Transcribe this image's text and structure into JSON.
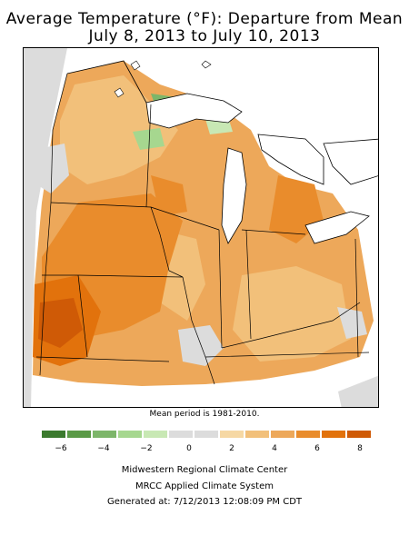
{
  "title_line1": "Average Temperature (°F): Departure from Mean",
  "title_line2": "July 8, 2013 to July 10, 2013",
  "mean_period": "Mean period is 1981-2010.",
  "legend": {
    "colors": [
      "#3b7a2e",
      "#5a9a46",
      "#7db66a",
      "#a6d78f",
      "#c8e8b4",
      "#dcdcdc",
      "#dcdcdc",
      "#f6d8a4",
      "#f2c07a",
      "#eda85a",
      "#e98c2c",
      "#e2720c",
      "#cf5a06"
    ],
    "ticks": [
      "−6",
      "−4",
      "−2",
      "0",
      "2",
      "4",
      "6",
      "8"
    ]
  },
  "footer": {
    "line1": "Midwestern Regional Climate Center",
    "line2": "MRCC Applied Climate System",
    "line3": "Generated at: 7/12/2013 12:08:09 PM CDT"
  },
  "map_colors": {
    "water": "#ffffff",
    "outside": "#dcdcdc",
    "light": "#f2c07a",
    "medium": "#eda85a",
    "strong": "#e98c2c",
    "stronger": "#e2720c",
    "strongest": "#cf5a06",
    "neutral": "#dcdcdc",
    "cool_light": "#c8e8b4",
    "cool_medium": "#a6d78f",
    "cool_strong": "#5a9a46"
  }
}
